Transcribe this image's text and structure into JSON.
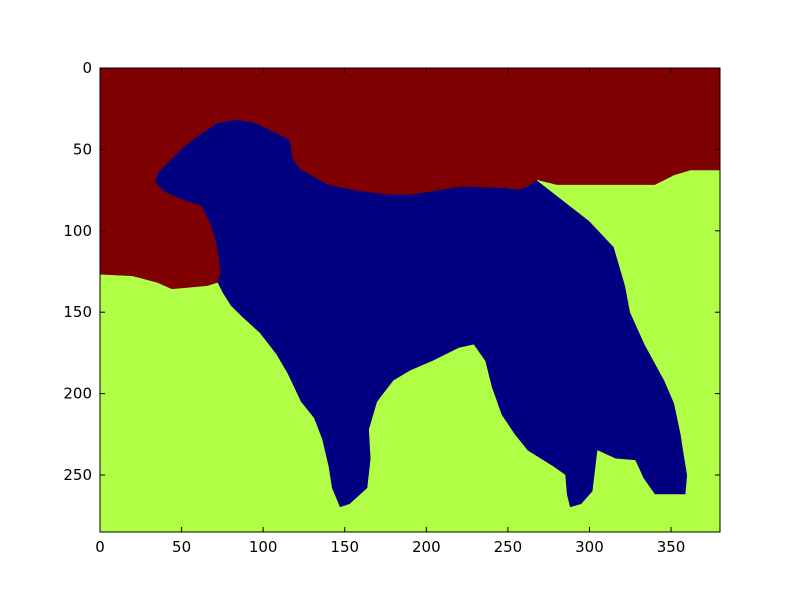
{
  "chart_data": {
    "type": "heatmap",
    "title": "",
    "xlabel": "",
    "ylabel": "",
    "xlim": [
      0,
      380
    ],
    "ylim": [
      285,
      0
    ],
    "y_inverted": true,
    "grid": false,
    "x_ticks": [
      0,
      50,
      100,
      150,
      200,
      250,
      300,
      350
    ],
    "y_ticks": [
      0,
      50,
      100,
      150,
      200,
      250
    ],
    "colormap": "jet",
    "regions": [
      {
        "label": "background",
        "color": "#7f0000",
        "polygon": [
          [
            0,
            0
          ],
          [
            380,
            0
          ],
          [
            380,
            63
          ],
          [
            362,
            63
          ],
          [
            352,
            66
          ],
          [
            340,
            72
          ],
          [
            280,
            72
          ],
          [
            268,
            69
          ],
          [
            262,
            73
          ],
          [
            256,
            75
          ],
          [
            250,
            74
          ],
          [
            222,
            73
          ],
          [
            190,
            78
          ],
          [
            178,
            78
          ],
          [
            160,
            76
          ],
          [
            140,
            72
          ],
          [
            122,
            62
          ],
          [
            118,
            56
          ],
          [
            116,
            44
          ],
          [
            95,
            34
          ],
          [
            84,
            32
          ],
          [
            72,
            34
          ],
          [
            60,
            42
          ],
          [
            50,
            50
          ],
          [
            42,
            58
          ],
          [
            36,
            64
          ],
          [
            34,
            70
          ],
          [
            40,
            76
          ],
          [
            54,
            82
          ],
          [
            62,
            84
          ],
          [
            68,
            96
          ],
          [
            72,
            110
          ],
          [
            74,
            126
          ],
          [
            72,
            132
          ],
          [
            66,
            134
          ],
          [
            44,
            136
          ],
          [
            35,
            132
          ],
          [
            20,
            128
          ],
          [
            0,
            127
          ]
        ]
      },
      {
        "label": "foreground",
        "color": "#000080",
        "polygon": [
          [
            84,
            32
          ],
          [
            95,
            34
          ],
          [
            116,
            44
          ],
          [
            118,
            56
          ],
          [
            122,
            62
          ],
          [
            140,
            72
          ],
          [
            160,
            76
          ],
          [
            178,
            78
          ],
          [
            190,
            78
          ],
          [
            222,
            73
          ],
          [
            250,
            74
          ],
          [
            256,
            75
          ],
          [
            262,
            73
          ],
          [
            268,
            69
          ],
          [
            300,
            94
          ],
          [
            315,
            110
          ],
          [
            322,
            134
          ],
          [
            325,
            150
          ],
          [
            334,
            170
          ],
          [
            346,
            192
          ],
          [
            352,
            206
          ],
          [
            356,
            225
          ],
          [
            358,
            238
          ],
          [
            360,
            250
          ],
          [
            359,
            262
          ],
          [
            340,
            262
          ],
          [
            333,
            252
          ],
          [
            328,
            241
          ],
          [
            316,
            240
          ],
          [
            305,
            235
          ],
          [
            302,
            260
          ],
          [
            295,
            268
          ],
          [
            288,
            270
          ],
          [
            286,
            262
          ],
          [
            285,
            250
          ],
          [
            278,
            245
          ],
          [
            262,
            235
          ],
          [
            254,
            225
          ],
          [
            246,
            213
          ],
          [
            240,
            196
          ],
          [
            236,
            180
          ],
          [
            229,
            170
          ],
          [
            220,
            172
          ],
          [
            204,
            180
          ],
          [
            190,
            186
          ],
          [
            180,
            192
          ],
          [
            170,
            205
          ],
          [
            165,
            222
          ],
          [
            166,
            240
          ],
          [
            164,
            258
          ],
          [
            153,
            268
          ],
          [
            147,
            270
          ],
          [
            142,
            258
          ],
          [
            140,
            245
          ],
          [
            136,
            228
          ],
          [
            131,
            215
          ],
          [
            123,
            205
          ],
          [
            115,
            188
          ],
          [
            108,
            176
          ],
          [
            98,
            163
          ],
          [
            86,
            152
          ],
          [
            80,
            146
          ],
          [
            75,
            138
          ],
          [
            72,
            132
          ],
          [
            74,
            126
          ],
          [
            72,
            110
          ],
          [
            68,
            96
          ],
          [
            62,
            84
          ],
          [
            54,
            82
          ],
          [
            40,
            76
          ],
          [
            34,
            70
          ],
          [
            36,
            64
          ],
          [
            42,
            58
          ],
          [
            50,
            50
          ],
          [
            60,
            42
          ],
          [
            72,
            34
          ]
        ]
      },
      {
        "label": "ground",
        "color": "#b0ff46",
        "polygon": [
          [
            0,
            127
          ],
          [
            20,
            128
          ],
          [
            35,
            132
          ],
          [
            44,
            136
          ],
          [
            66,
            134
          ],
          [
            72,
            132
          ],
          [
            75,
            138
          ],
          [
            80,
            146
          ],
          [
            86,
            152
          ],
          [
            98,
            163
          ],
          [
            108,
            176
          ],
          [
            115,
            188
          ],
          [
            123,
            205
          ],
          [
            131,
            215
          ],
          [
            136,
            228
          ],
          [
            140,
            245
          ],
          [
            142,
            258
          ],
          [
            147,
            270
          ],
          [
            153,
            268
          ],
          [
            164,
            258
          ],
          [
            166,
            240
          ],
          [
            165,
            222
          ],
          [
            170,
            205
          ],
          [
            180,
            192
          ],
          [
            190,
            186
          ],
          [
            204,
            180
          ],
          [
            220,
            172
          ],
          [
            229,
            170
          ],
          [
            236,
            180
          ],
          [
            240,
            196
          ],
          [
            246,
            213
          ],
          [
            254,
            225
          ],
          [
            262,
            235
          ],
          [
            278,
            245
          ],
          [
            285,
            250
          ],
          [
            286,
            262
          ],
          [
            288,
            270
          ],
          [
            295,
            268
          ],
          [
            302,
            260
          ],
          [
            305,
            235
          ],
          [
            316,
            240
          ],
          [
            328,
            241
          ],
          [
            333,
            252
          ],
          [
            340,
            262
          ],
          [
            359,
            262
          ],
          [
            360,
            250
          ],
          [
            358,
            238
          ],
          [
            356,
            225
          ],
          [
            352,
            206
          ],
          [
            346,
            192
          ],
          [
            334,
            170
          ],
          [
            325,
            150
          ],
          [
            322,
            134
          ],
          [
            315,
            110
          ],
          [
            300,
            94
          ],
          [
            268,
            69
          ],
          [
            280,
            72
          ],
          [
            340,
            72
          ],
          [
            352,
            66
          ],
          [
            362,
            63
          ],
          [
            380,
            63
          ],
          [
            380,
            285
          ],
          [
            0,
            285
          ]
        ]
      }
    ]
  }
}
